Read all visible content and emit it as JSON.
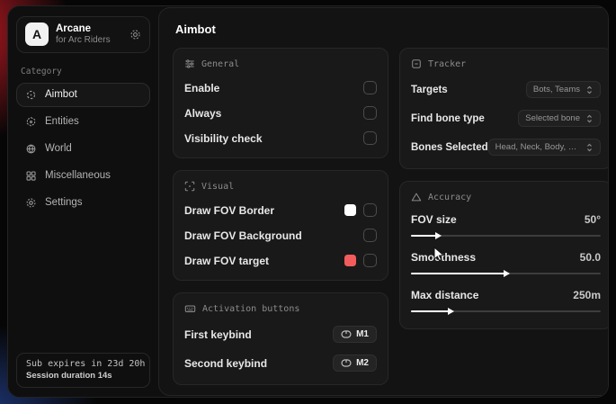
{
  "brand": {
    "logo_letter": "A",
    "title": "Arcane",
    "subtitle": "for Arc Riders"
  },
  "sidebar": {
    "category_label": "Category",
    "items": [
      {
        "label": "Aimbot"
      },
      {
        "label": "Entities"
      },
      {
        "label": "World"
      },
      {
        "label": "Miscellaneous"
      },
      {
        "label": "Settings"
      }
    ],
    "subscription": {
      "line1": "Sub expires in 23d 20h",
      "line2": "Session duration 14s"
    }
  },
  "main": {
    "title": "Aimbot",
    "general": {
      "title": "General",
      "rows": [
        {
          "label": "Enable",
          "checked": false
        },
        {
          "label": "Always",
          "checked": false
        },
        {
          "label": "Visibility check",
          "checked": false
        }
      ]
    },
    "visual": {
      "title": "Visual",
      "rows": [
        {
          "label": "Draw FOV Border",
          "swatch": "#ffffff",
          "checked": false
        },
        {
          "label": "Draw FOV Background",
          "checked": false
        },
        {
          "label": "Draw FOV target",
          "swatch": "#f25c5c",
          "checked": false
        }
      ]
    },
    "activation": {
      "title": "Activation buttons",
      "rows": [
        {
          "label": "First keybind",
          "key": "M1"
        },
        {
          "label": "Second keybind",
          "key": "M2"
        }
      ]
    },
    "tracker": {
      "title": "Tracker",
      "rows": [
        {
          "label": "Targets",
          "value": "Bots, Teams"
        },
        {
          "label": "Find bone type",
          "value": "Selected bone"
        },
        {
          "label": "Bones Selected",
          "value": "Head, Neck, Body, Fe..."
        }
      ]
    },
    "accuracy": {
      "title": "Accuracy",
      "rows": [
        {
          "label": "FOV size",
          "value": "50°",
          "percent": 14
        },
        {
          "label": "Smoothness",
          "value": "50.0",
          "percent": 50
        },
        {
          "label": "Max distance",
          "value": "250m",
          "percent": 21
        }
      ]
    }
  },
  "colors": {
    "accent_red": "#f25c5c",
    "swatch_white": "#ffffff"
  }
}
